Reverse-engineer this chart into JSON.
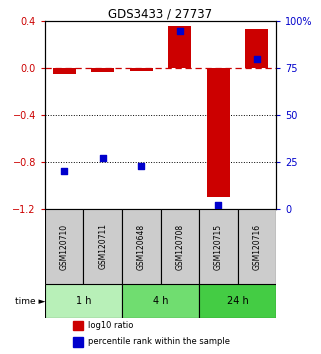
{
  "title": "GDS3433 / 27737",
  "samples": [
    "GSM120710",
    "GSM120711",
    "GSM120648",
    "GSM120708",
    "GSM120715",
    "GSM120716"
  ],
  "log10_ratio": [
    -0.05,
    -0.03,
    -0.02,
    0.36,
    -1.1,
    0.33
  ],
  "percentile_rank": [
    20,
    27,
    23,
    95,
    2,
    80
  ],
  "time_groups": [
    {
      "label": "1 h",
      "samples": [
        0,
        1
      ],
      "color": "#b8f0b8"
    },
    {
      "label": "4 h",
      "samples": [
        2,
        3
      ],
      "color": "#70dd70"
    },
    {
      "label": "24 h",
      "samples": [
        4,
        5
      ],
      "color": "#44cc44"
    }
  ],
  "ylim_left": [
    -1.2,
    0.4
  ],
  "ylim_right": [
    0,
    100
  ],
  "yticks_left": [
    0.4,
    0.0,
    -0.4,
    -0.8,
    -1.2
  ],
  "yticks_right": [
    100,
    75,
    50,
    25,
    0
  ],
  "bar_color": "#cc0000",
  "scatter_color": "#0000cc",
  "dashed_color": "#cc0000",
  "legend_items": [
    {
      "label": "log10 ratio",
      "color": "#cc0000"
    },
    {
      "label": "percentile rank within the sample",
      "color": "#0000cc"
    }
  ],
  "sample_box_color": "#cccccc",
  "time_arrow": "time ►"
}
